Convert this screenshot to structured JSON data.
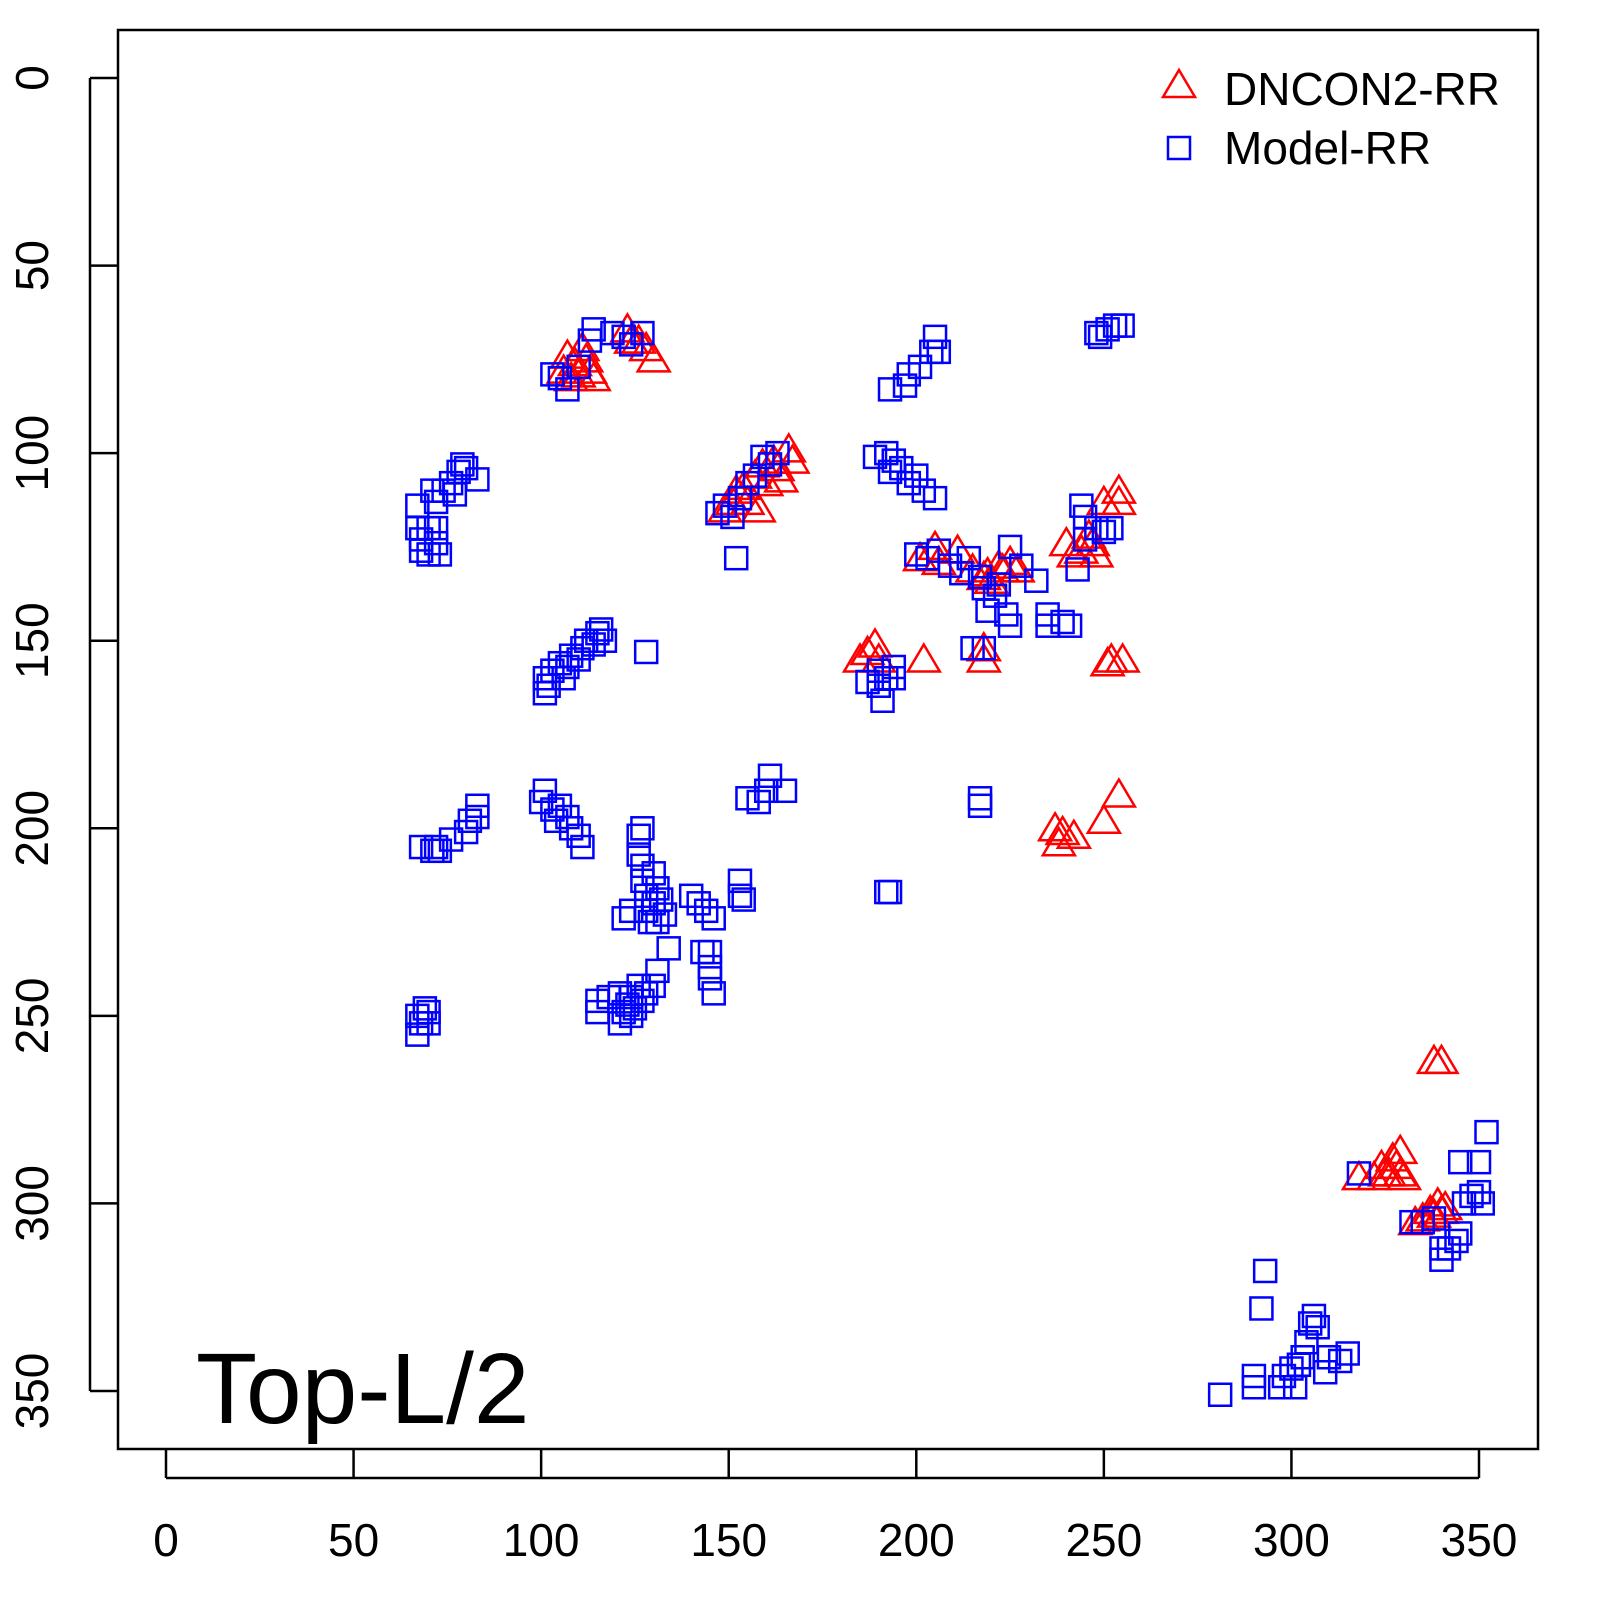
{
  "chart_data": {
    "type": "scatter",
    "title": "",
    "xlabel": "",
    "ylabel": "",
    "xlim": [
      -12.8,
      365.7
    ],
    "ylim": [
      -12.8,
      365.7
    ],
    "y_inverted": true,
    "grid": false,
    "x_ticks": [
      0,
      50,
      100,
      150,
      200,
      250,
      300,
      350
    ],
    "y_ticks": [
      0,
      50,
      100,
      150,
      200,
      250,
      300,
      350
    ],
    "x_tick_labels": [
      "0",
      "50",
      "100",
      "150",
      "200",
      "250",
      "300",
      "350"
    ],
    "y_tick_labels": [
      "0",
      "50",
      "100",
      "150",
      "200",
      "250",
      "300",
      "350"
    ],
    "annotation": "Top-L/2",
    "legend_position": "top-right",
    "series": [
      {
        "name": "DNCON2-RR",
        "marker": "triangle",
        "color": "#ff0000",
        "points": [
          [
            106,
            78
          ],
          [
            107,
            74
          ],
          [
            108,
            80
          ],
          [
            109,
            76
          ],
          [
            110,
            79
          ],
          [
            111,
            72
          ],
          [
            112,
            75
          ],
          [
            113,
            78
          ],
          [
            114,
            80
          ],
          [
            123,
            67
          ],
          [
            124,
            70
          ],
          [
            126,
            70
          ],
          [
            128,
            72
          ],
          [
            130,
            75
          ],
          [
            149,
            115
          ],
          [
            151,
            113
          ],
          [
            152,
            110
          ],
          [
            154,
            109
          ],
          [
            155,
            113
          ],
          [
            157,
            106
          ],
          [
            158,
            115
          ],
          [
            159,
            103
          ],
          [
            160,
            108
          ],
          [
            162,
            102
          ],
          [
            163,
            104
          ],
          [
            164,
            107
          ],
          [
            166,
            99
          ],
          [
            167,
            102
          ],
          [
            201,
            128
          ],
          [
            205,
            125
          ],
          [
            206,
            129
          ],
          [
            211,
            126
          ],
          [
            215,
            131
          ],
          [
            218,
            133
          ],
          [
            219,
            132
          ],
          [
            220,
            134
          ],
          [
            222,
            130
          ],
          [
            223,
            131
          ],
          [
            225,
            129
          ],
          [
            227,
            131
          ],
          [
            202,
            155
          ],
          [
            218,
            152
          ],
          [
            218,
            155
          ],
          [
            185,
            155
          ],
          [
            187,
            153
          ],
          [
            189,
            151
          ],
          [
            190,
            155
          ],
          [
            240,
            124
          ],
          [
            242,
            127
          ],
          [
            244,
            126
          ],
          [
            246,
            122
          ],
          [
            247,
            124
          ],
          [
            248,
            127
          ],
          [
            250,
            113
          ],
          [
            254,
            110
          ],
          [
            254,
            113
          ],
          [
            251,
            156
          ],
          [
            252,
            155
          ],
          [
            255,
            155
          ],
          [
            237,
            200
          ],
          [
            238,
            204
          ],
          [
            239,
            201
          ],
          [
            242,
            202
          ],
          [
            250,
            198
          ],
          [
            254,
            191
          ],
          [
            338,
            262
          ],
          [
            340,
            262
          ],
          [
            318,
            293
          ],
          [
            322,
            293
          ],
          [
            324,
            290
          ],
          [
            325,
            292
          ],
          [
            327,
            288
          ],
          [
            328,
            290
          ],
          [
            329,
            292
          ],
          [
            330,
            293
          ],
          [
            326,
            292
          ],
          [
            329,
            286
          ],
          [
            333,
            305
          ],
          [
            335,
            304
          ],
          [
            337,
            302
          ],
          [
            338,
            303
          ],
          [
            339,
            300
          ],
          [
            340,
            302
          ],
          [
            341,
            301
          ]
        ]
      },
      {
        "name": "Model-RR",
        "marker": "square",
        "color": "#0000ff",
        "points": [
          [
            67,
            114
          ],
          [
            67,
            120
          ],
          [
            68,
            123
          ],
          [
            68,
            126
          ],
          [
            70,
            120
          ],
          [
            71,
            110
          ],
          [
            72,
            113
          ],
          [
            72,
            124
          ],
          [
            73,
            127
          ],
          [
            74,
            110
          ],
          [
            76,
            108
          ],
          [
            77,
            111
          ],
          [
            78,
            105
          ],
          [
            79,
            103
          ],
          [
            80,
            104
          ],
          [
            83,
            107
          ],
          [
            70,
            127
          ],
          [
            72,
            120
          ],
          [
            101,
            160
          ],
          [
            101,
            164
          ],
          [
            102,
            162
          ],
          [
            103,
            158
          ],
          [
            105,
            156
          ],
          [
            106,
            160
          ],
          [
            107,
            157
          ],
          [
            108,
            154
          ],
          [
            110,
            155
          ],
          [
            111,
            152
          ],
          [
            112,
            150
          ],
          [
            114,
            151
          ],
          [
            115,
            148
          ],
          [
            116,
            147
          ],
          [
            117,
            150
          ],
          [
            128,
            153
          ],
          [
            68,
            205
          ],
          [
            71,
            206
          ],
          [
            72,
            205
          ],
          [
            73,
            206
          ],
          [
            76,
            203
          ],
          [
            80,
            201
          ],
          [
            81,
            198
          ],
          [
            83,
            197
          ],
          [
            83,
            194
          ],
          [
            100,
            193
          ],
          [
            101,
            190
          ],
          [
            103,
            195
          ],
          [
            104,
            198
          ],
          [
            105,
            194
          ],
          [
            107,
            197
          ],
          [
            108,
            200
          ],
          [
            110,
            202
          ],
          [
            111,
            205
          ],
          [
            126,
            202
          ],
          [
            126,
            207
          ],
          [
            127,
            210
          ],
          [
            127,
            214
          ],
          [
            128,
            218
          ],
          [
            128,
            222
          ],
          [
            129,
            225
          ],
          [
            130,
            212
          ],
          [
            130,
            220
          ],
          [
            131,
            216
          ],
          [
            132,
            219
          ],
          [
            133,
            223
          ],
          [
            127,
            200
          ],
          [
            131,
            225
          ],
          [
            122,
            224
          ],
          [
            124,
            222
          ],
          [
            134,
            232
          ],
          [
            131,
            238
          ],
          [
            130,
            242
          ],
          [
            140,
            218
          ],
          [
            142,
            220
          ],
          [
            144,
            222
          ],
          [
            146,
            224
          ],
          [
            143,
            233
          ],
          [
            145,
            233
          ],
          [
            145,
            240
          ],
          [
            146,
            244
          ],
          [
            145,
            237
          ],
          [
            153,
            214
          ],
          [
            153,
            218
          ],
          [
            154,
            219
          ],
          [
            155,
            192
          ],
          [
            158,
            193
          ],
          [
            160,
            190
          ],
          [
            161,
            186
          ],
          [
            165,
            190
          ],
          [
            115,
            246
          ],
          [
            115,
            249
          ],
          [
            118,
            245
          ],
          [
            121,
            244
          ],
          [
            122,
            249
          ],
          [
            121,
            252
          ],
          [
            123,
            247
          ],
          [
            124,
            245
          ],
          [
            125,
            248
          ],
          [
            126,
            242
          ],
          [
            127,
            246
          ],
          [
            128,
            244
          ],
          [
            124,
            250
          ],
          [
            67,
            250
          ],
          [
            67,
            255
          ],
          [
            68,
            252
          ],
          [
            69,
            248
          ],
          [
            70,
            249
          ],
          [
            70,
            252
          ],
          [
            103,
            79
          ],
          [
            105,
            80
          ],
          [
            107,
            83
          ],
          [
            110,
            77
          ],
          [
            113,
            70
          ],
          [
            114,
            67
          ],
          [
            119,
            68
          ],
          [
            122,
            69
          ],
          [
            124,
            71
          ],
          [
            127,
            68
          ],
          [
            147,
            116
          ],
          [
            149,
            114
          ],
          [
            151,
            117
          ],
          [
            152,
            128
          ],
          [
            153,
            112
          ],
          [
            155,
            108
          ],
          [
            157,
            106
          ],
          [
            159,
            101
          ],
          [
            161,
            103
          ],
          [
            163,
            100
          ],
          [
            189,
            101
          ],
          [
            192,
            100
          ],
          [
            193,
            105
          ],
          [
            194,
            102
          ],
          [
            196,
            104
          ],
          [
            198,
            108
          ],
          [
            200,
            106
          ],
          [
            202,
            110
          ],
          [
            205,
            112
          ],
          [
            193,
            83
          ],
          [
            197,
            82
          ],
          [
            198,
            79
          ],
          [
            201,
            77
          ],
          [
            204,
            73
          ],
          [
            205,
            69
          ],
          [
            206,
            73
          ],
          [
            190,
            158
          ],
          [
            190,
            162
          ],
          [
            191,
            166
          ],
          [
            192,
            160
          ],
          [
            194,
            157
          ],
          [
            194,
            160
          ],
          [
            187,
            161
          ],
          [
            192,
            217
          ],
          [
            193,
            217
          ],
          [
            217,
            192
          ],
          [
            217,
            194
          ],
          [
            200,
            127
          ],
          [
            203,
            128
          ],
          [
            206,
            126
          ],
          [
            209,
            130
          ],
          [
            212,
            132
          ],
          [
            214,
            128
          ],
          [
            217,
            133
          ],
          [
            218,
            136
          ],
          [
            219,
            142
          ],
          [
            221,
            138
          ],
          [
            222,
            135
          ],
          [
            224,
            143
          ],
          [
            225,
            146
          ],
          [
            225,
            125
          ],
          [
            228,
            130
          ],
          [
            232,
            134
          ],
          [
            235,
            143
          ],
          [
            235,
            146
          ],
          [
            239,
            145
          ],
          [
            241,
            146
          ],
          [
            243,
            131
          ],
          [
            245,
            123
          ],
          [
            248,
            120
          ],
          [
            250,
            121
          ],
          [
            252,
            120
          ],
          [
            244,
            114
          ],
          [
            245,
            117
          ],
          [
            215,
            152
          ],
          [
            218,
            152
          ],
          [
            248,
            68
          ],
          [
            249,
            69
          ],
          [
            251,
            67
          ],
          [
            253,
            66
          ],
          [
            255,
            66
          ],
          [
            281,
            351
          ],
          [
            290,
            349
          ],
          [
            290,
            346
          ],
          [
            292,
            328
          ],
          [
            293,
            318
          ],
          [
            297,
            349
          ],
          [
            298,
            346
          ],
          [
            300,
            344
          ],
          [
            301,
            349
          ],
          [
            302,
            343
          ],
          [
            303,
            341
          ],
          [
            304,
            337
          ],
          [
            305,
            332
          ],
          [
            306,
            330
          ],
          [
            307,
            333
          ],
          [
            309,
            345
          ],
          [
            310,
            341
          ],
          [
            313,
            342
          ],
          [
            315,
            340
          ],
          [
            318,
            292
          ],
          [
            332,
            305
          ],
          [
            335,
            305
          ],
          [
            338,
            304
          ],
          [
            340,
            312
          ],
          [
            340,
            315
          ],
          [
            342,
            312
          ],
          [
            344,
            310
          ],
          [
            345,
            308
          ],
          [
            345,
            289
          ],
          [
            346,
            300
          ],
          [
            348,
            298
          ],
          [
            350,
            289
          ],
          [
            350,
            297
          ],
          [
            351,
            300
          ],
          [
            352,
            281
          ]
        ]
      }
    ]
  }
}
